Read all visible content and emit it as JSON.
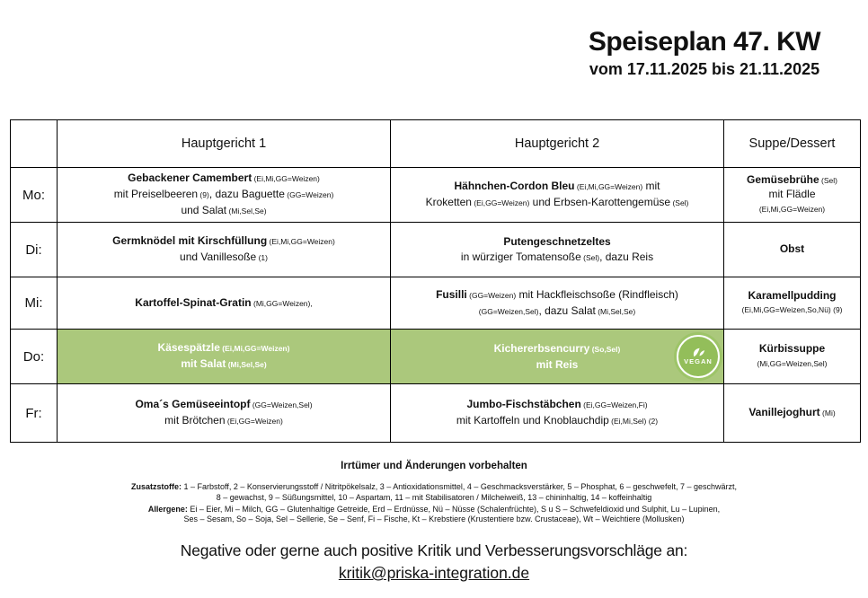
{
  "page": {
    "title": "Speiseplan 47. KW",
    "subtitle": "vom 17.11.2025 bis 21.11.2025"
  },
  "colors": {
    "highlight_green": "#abc87c",
    "badge_green": "#93be5a",
    "badge_ring_green": "#9dc468",
    "text": "#111111"
  },
  "table": {
    "columns": [
      "",
      "Hauptgericht 1",
      "Hauptgericht 2",
      "Suppe/Dessert"
    ],
    "rows": [
      {
        "day": "Mo:",
        "highlight": false,
        "main1": [
          [
            {
              "t": "Gebackener Camembert",
              "s": "b"
            },
            {
              "t": " (Ei,Mi,GG=Weizen)",
              "s": "sm"
            }
          ],
          [
            {
              "t": "mit Preiselbeeren",
              "s": "r"
            },
            {
              "t": " (9)",
              "s": "sm"
            },
            {
              "t": ", dazu Baguette",
              "s": "r"
            },
            {
              "t": " (GG=Weizen)",
              "s": "sm"
            }
          ],
          [
            {
              "t": "und Salat",
              "s": "r"
            },
            {
              "t": " (Mi,Sel,Se)",
              "s": "sm"
            }
          ]
        ],
        "main2": [
          [
            {
              "t": "Hähnchen-Cordon Bleu",
              "s": "b"
            },
            {
              "t": " (Ei,Mi,GG=Weizen)",
              "s": "sm"
            },
            {
              "t": " mit",
              "s": "r"
            }
          ],
          [
            {
              "t": "Kroketten",
              "s": "r"
            },
            {
              "t": " (Ei,GG=Weizen)",
              "s": "sm"
            },
            {
              "t": " und Erbsen-Karottengemüse",
              "s": "r"
            },
            {
              "t": " (Sel)",
              "s": "sm"
            }
          ]
        ],
        "side": [
          [
            {
              "t": "Gemüsebrühe",
              "s": "b"
            },
            {
              "t": " (Sel)",
              "s": "sm"
            }
          ],
          [
            {
              "t": "mit Flädle",
              "s": "r"
            }
          ],
          [
            {
              "t": "(Ei,Mi,GG=Weizen)",
              "s": "sm"
            }
          ]
        ]
      },
      {
        "day": "Di:",
        "highlight": false,
        "main1": [
          [
            {
              "t": "Germknödel mit Kirschfüllung",
              "s": "b"
            },
            {
              "t": " (Ei,Mi,GG=Weizen)",
              "s": "sm"
            }
          ],
          [
            {
              "t": "und Vanillesoße",
              "s": "r"
            },
            {
              "t": " (1)",
              "s": "sm"
            }
          ]
        ],
        "main2": [
          [
            {
              "t": "Putengeschnetzeltes",
              "s": "b"
            }
          ],
          [
            {
              "t": "in würziger Tomatensoße",
              "s": "r"
            },
            {
              "t": " (Sel)",
              "s": "sm"
            },
            {
              "t": ", dazu Reis",
              "s": "r"
            }
          ]
        ],
        "side": [
          [
            {
              "t": "Obst",
              "s": "b"
            }
          ]
        ]
      },
      {
        "day": "Mi:",
        "highlight": false,
        "main1": [
          [
            {
              "t": "Kartoffel-Spinat-Gratin",
              "s": "b"
            },
            {
              "t": " (Mi,GG=Weizen),",
              "s": "sm"
            }
          ]
        ],
        "main2": [
          [
            {
              "t": "Fusilli",
              "s": "b"
            },
            {
              "t": " (GG=Weizen)",
              "s": "sm"
            },
            {
              "t": " mit Hackfleischsoße",
              "s": "r"
            },
            {
              "t": " (Rindfleisch)",
              "s": "r"
            }
          ],
          [
            {
              "t": "(GG=Weizen,Sel)",
              "s": "sm"
            },
            {
              "t": ", dazu Salat",
              "s": "r"
            },
            {
              "t": " (Mi,Sel,Se)",
              "s": "sm"
            }
          ]
        ],
        "side": [
          [
            {
              "t": "Karamellpudding",
              "s": "b"
            }
          ],
          [
            {
              "t": "(Ei,Mi,GG=Weizen,So,Nü) (9)",
              "s": "sm"
            }
          ]
        ]
      },
      {
        "day": "Do:",
        "highlight": true,
        "main1": [
          [
            {
              "t": "Käsespätzle",
              "s": "b"
            },
            {
              "t": " (Ei,Mi,GG=Weizen)",
              "s": "smb"
            }
          ],
          [
            {
              "t": "mit Salat",
              "s": "b"
            },
            {
              "t": " (Mi,Sel,Se)",
              "s": "smb"
            }
          ]
        ],
        "main2": [
          [
            {
              "t": "Kichererbsencurry",
              "s": "b"
            },
            {
              "t": " (So,Sel)",
              "s": "smb"
            }
          ],
          [
            {
              "t": "mit Reis",
              "s": "b"
            }
          ]
        ],
        "side": [
          [
            {
              "t": "Kürbissuppe",
              "s": "b"
            }
          ],
          [
            {
              "t": "(Mi,GG=Weizen,Sel)",
              "s": "sm"
            }
          ]
        ]
      },
      {
        "day": "Fr:",
        "highlight": false,
        "main1": [
          [
            {
              "t": "Oma´s Gemüseeintopf",
              "s": "b"
            },
            {
              "t": " (GG=Weizen,Sel)",
              "s": "sm"
            }
          ],
          [
            {
              "t": "mit Brötchen",
              "s": "r"
            },
            {
              "t": " (Ei,GG=Weizen)",
              "s": "sm"
            }
          ]
        ],
        "main2": [
          [
            {
              "t": "Jumbo-Fischstäbchen",
              "s": "b"
            },
            {
              "t": " (Ei,GG=Weizen,Fi)",
              "s": "sm"
            }
          ],
          [
            {
              "t": "mit Kartoffeln und Knoblauchdip",
              "s": "r"
            },
            {
              "t": " (Ei,Mi,Sel) (2)",
              "s": "sm"
            }
          ]
        ],
        "side": [
          [
            {
              "t": "Vanillejoghurt",
              "s": "b"
            },
            {
              "t": " (Mi)",
              "s": "sm"
            }
          ]
        ]
      }
    ]
  },
  "vegan_badge": {
    "label": "VEGAN"
  },
  "footer": {
    "disclaimer": "Irrtümer und Änderungen vorbehalten",
    "zusatz": [
      [
        {
          "t": "Zusatzstoffe:",
          "s": "fb"
        },
        {
          "t": " 1 – Farbstoff, 2 – Konservierungsstoff / Nitritpökelsalz, 3 – Antioxidationsmittel, 4 – Geschmacksverstärker, 5 – Phosphat, 6 – geschwefelt, 7 – geschwärzt,",
          "s": "f"
        }
      ],
      [
        {
          "t": "8 – gewachst, 9 – Süßungsmittel, 10 – Aspartam, 11 – mit Stabilisatoren / Milcheiweiß, 13 – chininhaltig, 14 – koffeinhaltig",
          "s": "f"
        }
      ]
    ],
    "allergene": [
      [
        {
          "t": "Allergene:",
          "s": "fb"
        },
        {
          "t": " Ei – Eier, Mi – Milch, GG – Glutenhaltige Getreide, Erd – Erdnüsse, Nü – Nüsse (Schalenfrüchte), S u S – Schwefeldioxid und Sulphit, Lu – Lupinen,",
          "s": "f"
        }
      ],
      [
        {
          "t": "Ses – Sesam, So – Soja, Sel – Sellerie, Se – Senf, Fi – Fische, Kt – Krebstiere (Krustentiere bzw. Crustaceae), Wt – Weichtiere (Mollusken)",
          "s": "f"
        }
      ]
    ],
    "feedback": "Negative oder gerne auch positive Kritik und Verbesserungsvorschläge an:",
    "email": "kritik@priska-integration.de"
  }
}
